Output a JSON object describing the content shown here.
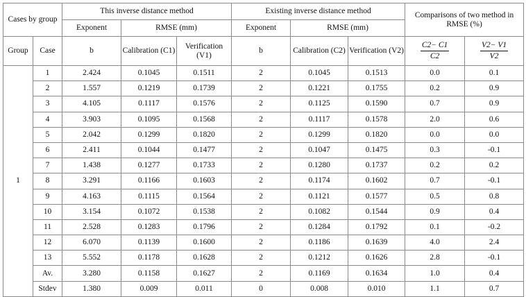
{
  "headers": {
    "cases_by_group": "Cases by group",
    "this_method": "This inverse distance method",
    "existing_method": "Existing inverse distance method",
    "comparisons": "Comparisons of two method in RMSE (%)",
    "exponent": "Exponent",
    "rmse": "RMSE (mm)",
    "group": "Group",
    "case": "Case",
    "b": "b",
    "calibration_c1": "Calibration (C1)",
    "verification_v1": "Verification (V1)",
    "calibration_c2": "Calibration (C2)",
    "verification_v2": "Verification (V2)",
    "frac1_num": "C2− C1",
    "frac1_den": "C2",
    "frac2_num": "V2− V1",
    "frac2_den": "V2"
  },
  "group_value": "1",
  "rows": [
    {
      "case": "1",
      "b1": "2.424",
      "c1": "0.1045",
      "v1": "0.1511",
      "b2": "2",
      "c2": "0.1045",
      "v2": "0.1513",
      "pc": "0.0",
      "pv": "0.1"
    },
    {
      "case": "2",
      "b1": "1.557",
      "c1": "0.1219",
      "v1": "0.1739",
      "b2": "2",
      "c2": "0.1221",
      "v2": "0.1755",
      "pc": "0.2",
      "pv": "0.9"
    },
    {
      "case": "3",
      "b1": "4.105",
      "c1": "0.1117",
      "v1": "0.1576",
      "b2": "2",
      "c2": "0.1125",
      "v2": "0.1590",
      "pc": "0.7",
      "pv": "0.9"
    },
    {
      "case": "4",
      "b1": "3.903",
      "c1": "0.1095",
      "v1": "0.1568",
      "b2": "2",
      "c2": "0.1117",
      "v2": "0.1578",
      "pc": "2.0",
      "pv": "0.6"
    },
    {
      "case": "5",
      "b1": "2.042",
      "c1": "0.1299",
      "v1": "0.1820",
      "b2": "2",
      "c2": "0.1299",
      "v2": "0.1820",
      "pc": "0.0",
      "pv": "0.0"
    },
    {
      "case": "6",
      "b1": "2.411",
      "c1": "0.1044",
      "v1": "0.1477",
      "b2": "2",
      "c2": "0.1047",
      "v2": "0.1475",
      "pc": "0.3",
      "pv": "-0.1"
    },
    {
      "case": "7",
      "b1": "1.438",
      "c1": "0.1277",
      "v1": "0.1733",
      "b2": "2",
      "c2": "0.1280",
      "v2": "0.1737",
      "pc": "0.2",
      "pv": "0.2"
    },
    {
      "case": "8",
      "b1": "3.291",
      "c1": "0.1166",
      "v1": "0.1603",
      "b2": "2",
      "c2": "0.1174",
      "v2": "0.1602",
      "pc": "0.7",
      "pv": "-0.1"
    },
    {
      "case": "9",
      "b1": "4.163",
      "c1": "0.1115",
      "v1": "0.1564",
      "b2": "2",
      "c2": "0.1121",
      "v2": "0.1577",
      "pc": "0.5",
      "pv": "0.8"
    },
    {
      "case": "10",
      "b1": "3.154",
      "c1": "0.1072",
      "v1": "0.1538",
      "b2": "2",
      "c2": "0.1082",
      "v2": "0.1544",
      "pc": "0.9",
      "pv": "0.4"
    },
    {
      "case": "11",
      "b1": "2.528",
      "c1": "0.1283",
      "v1": "0.1796",
      "b2": "2",
      "c2": "0.1284",
      "v2": "0.1792",
      "pc": "0.1",
      "pv": "-0.2"
    },
    {
      "case": "12",
      "b1": "6.070",
      "c1": "0.1139",
      "v1": "0.1600",
      "b2": "2",
      "c2": "0.1186",
      "v2": "0.1639",
      "pc": "4.0",
      "pv": "2.4"
    },
    {
      "case": "13",
      "b1": "5.552",
      "c1": "0.1178",
      "v1": "0.1628",
      "b2": "2",
      "c2": "0.1212",
      "v2": "0.1626",
      "pc": "2.8",
      "pv": "-0.1"
    },
    {
      "case": "Av.",
      "b1": "3.280",
      "c1": "0.1158",
      "v1": "0.1627",
      "b2": "2",
      "c2": "0.1169",
      "v2": "0.1634",
      "pc": "1.0",
      "pv": "0.4"
    },
    {
      "case": "Stdev",
      "b1": "1.380",
      "c1": "0.009",
      "v1": "0.011",
      "b2": "0",
      "c2": "0.008",
      "v2": "0.010",
      "pc": "1.1",
      "pv": "0.7"
    }
  ]
}
